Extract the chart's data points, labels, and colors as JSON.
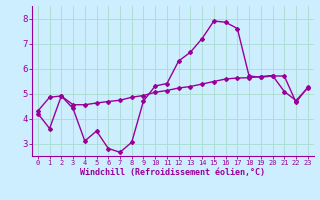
{
  "xlabel": "Windchill (Refroidissement éolien,°C)",
  "bg_color": "#cceeff",
  "line_color": "#990099",
  "grid_color": "#aaddcc",
  "curve1_x": [
    0,
    1,
    2,
    3,
    4,
    5,
    6,
    7,
    8,
    9,
    10,
    11,
    12,
    13,
    14,
    15,
    16,
    17,
    18,
    19,
    20,
    21,
    22,
    23
  ],
  "curve1_y": [
    4.2,
    3.6,
    4.9,
    4.4,
    3.1,
    3.5,
    2.8,
    2.65,
    3.05,
    4.7,
    5.3,
    5.4,
    6.3,
    6.65,
    7.2,
    7.9,
    7.85,
    7.6,
    5.7,
    5.65,
    5.7,
    5.7,
    4.65,
    5.25
  ],
  "curve2_x": [
    0,
    1,
    2,
    3,
    4,
    5,
    6,
    7,
    8,
    9,
    10,
    11,
    12,
    13,
    14,
    15,
    16,
    17,
    18,
    19,
    20,
    21,
    22,
    23
  ],
  "curve2_y": [
    4.3,
    4.85,
    4.9,
    4.55,
    4.55,
    4.62,
    4.68,
    4.73,
    4.85,
    4.92,
    5.05,
    5.12,
    5.22,
    5.28,
    5.38,
    5.48,
    5.58,
    5.62,
    5.63,
    5.68,
    5.72,
    5.08,
    4.72,
    5.22
  ],
  "ylim": [
    2.5,
    8.5
  ],
  "xlim": [
    -0.5,
    23.5
  ],
  "yticks": [
    3,
    4,
    5,
    6,
    7,
    8
  ],
  "xticks": [
    0,
    1,
    2,
    3,
    4,
    5,
    6,
    7,
    8,
    9,
    10,
    11,
    12,
    13,
    14,
    15,
    16,
    17,
    18,
    19,
    20,
    21,
    22,
    23
  ]
}
